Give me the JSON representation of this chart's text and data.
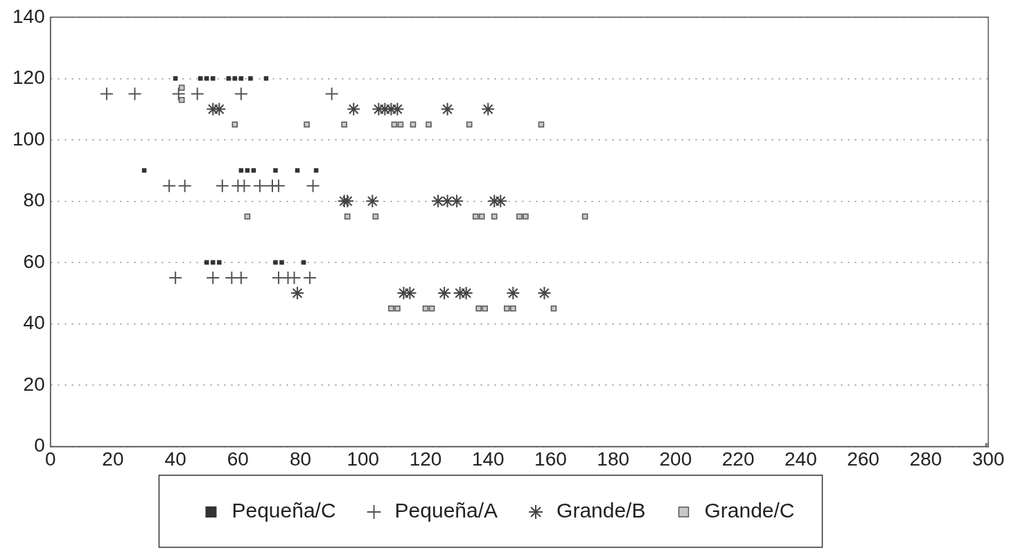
{
  "chart_data": {
    "type": "scatter",
    "xlim": [
      0,
      300
    ],
    "xticks": [
      0,
      20,
      40,
      60,
      80,
      100,
      120,
      140,
      160,
      180,
      200,
      220,
      240,
      260,
      280,
      300
    ],
    "ylim": [
      0,
      140
    ],
    "yticks": [
      0,
      20,
      40,
      60,
      80,
      100,
      120,
      140
    ],
    "grid": "y",
    "legend": "bottom",
    "series": [
      {
        "name": "Pequeña/C",
        "color": "#333333",
        "marker": "square",
        "x": [
          40,
          48,
          50,
          52,
          57,
          59,
          61,
          64,
          69,
          30,
          61,
          63,
          65,
          72,
          79,
          85,
          50,
          52,
          54,
          72,
          74,
          81
        ],
        "values": [
          120,
          120,
          120,
          120,
          120,
          120,
          120,
          120,
          120,
          90,
          90,
          90,
          90,
          90,
          90,
          90,
          60,
          60,
          60,
          60,
          60,
          60
        ]
      },
      {
        "name": "Pequeña/A",
        "color": "#555555",
        "marker": "cross",
        "x": [
          18,
          27,
          41,
          47,
          61,
          90,
          38,
          43,
          55,
          60,
          62,
          67,
          71,
          73,
          84,
          40,
          52,
          58,
          61,
          73,
          76,
          78,
          83
        ],
        "values": [
          115,
          115,
          115,
          115,
          115,
          115,
          85,
          85,
          85,
          85,
          85,
          85,
          85,
          85,
          85,
          55,
          55,
          55,
          55,
          55,
          55,
          55,
          55
        ]
      },
      {
        "name": "Grande/B",
        "color": "#444444",
        "x": [
          52,
          54,
          97,
          105,
          107,
          109,
          111,
          127,
          140,
          94,
          95,
          103,
          124,
          127,
          130,
          142,
          144,
          79,
          113,
          115,
          126,
          131,
          133,
          148,
          158
        ],
        "values": [
          110,
          110,
          110,
          110,
          110,
          110,
          110,
          110,
          110,
          80,
          80,
          80,
          80,
          80,
          80,
          80,
          80,
          50,
          50,
          50,
          50,
          50,
          50,
          50,
          50
        ]
      },
      {
        "name": "Grande/C",
        "color": "#c8c8c8",
        "marker": "square",
        "x": [
          42,
          42,
          59,
          82,
          94,
          110,
          112,
          116,
          121,
          134,
          157,
          63,
          95,
          104,
          136,
          138,
          142,
          150,
          152,
          171,
          109,
          111,
          120,
          122,
          137,
          139,
          146,
          148,
          161,
          300
        ],
        "values": [
          117,
          113,
          105,
          105,
          105,
          105,
          105,
          105,
          105,
          105,
          105,
          75,
          75,
          75,
          75,
          75,
          75,
          75,
          75,
          75,
          45,
          45,
          45,
          45,
          45,
          45,
          45,
          45,
          45,
          0
        ]
      }
    ]
  }
}
